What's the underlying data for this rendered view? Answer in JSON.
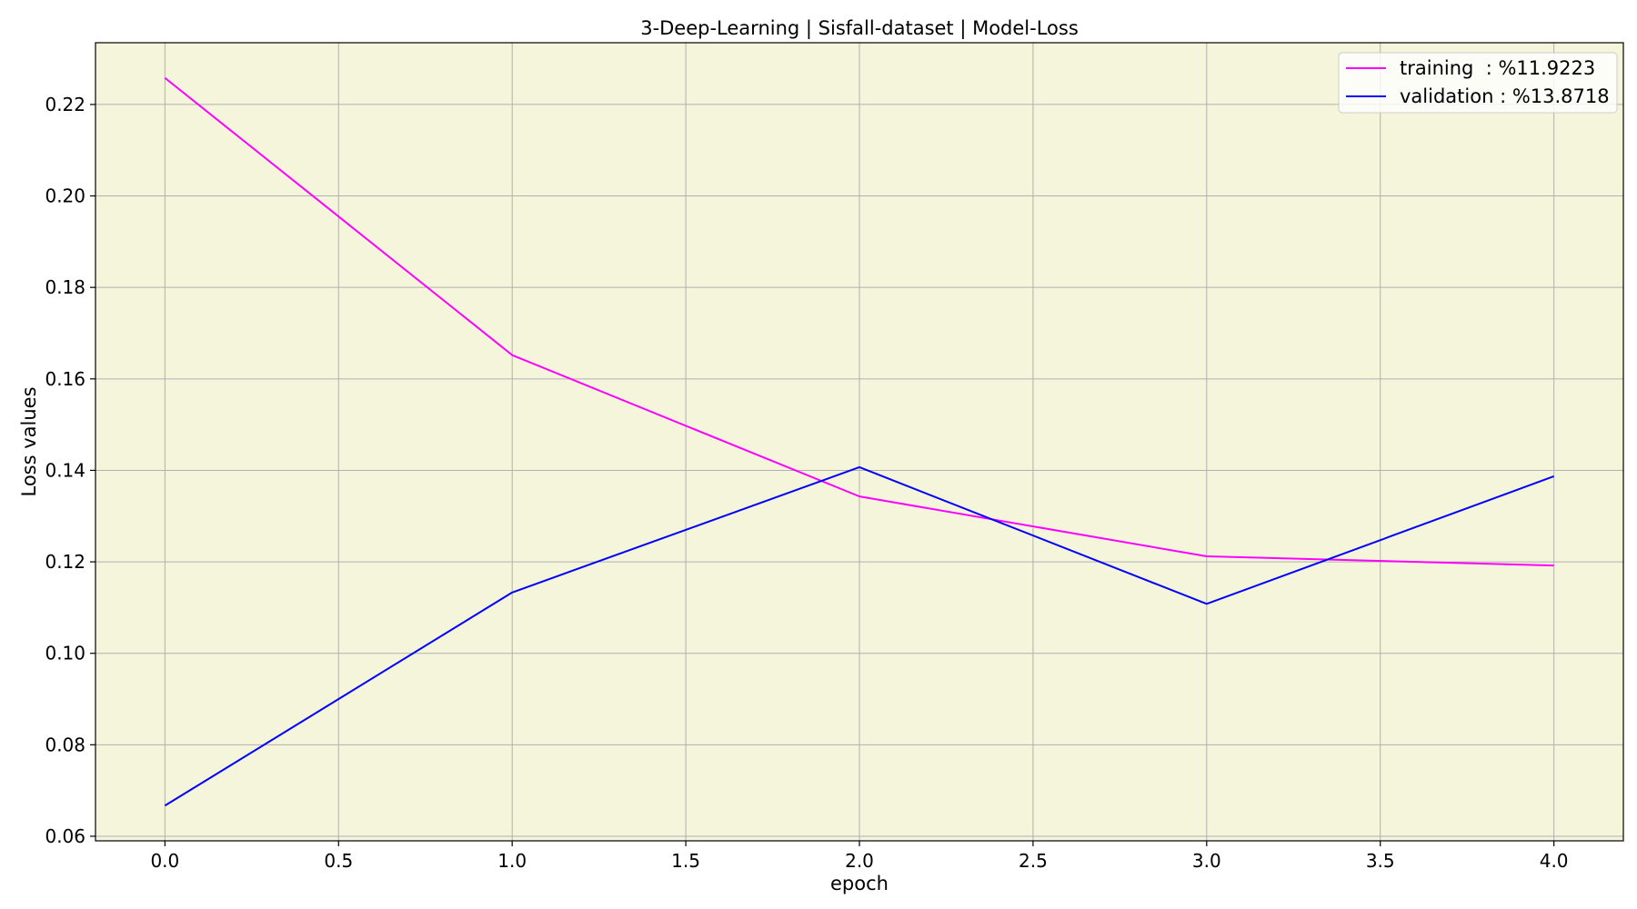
{
  "chart_data": {
    "type": "line",
    "title": "3-Deep-Learning | Sisfall-dataset  | Model-Loss",
    "xlabel": "epoch",
    "ylabel": "Loss values",
    "xlim": [
      -0.2,
      4.2
    ],
    "ylim": [
      0.059,
      0.2335
    ],
    "x_ticks": [
      0.0,
      0.5,
      1.0,
      1.5,
      2.0,
      2.5,
      3.0,
      3.5,
      4.0
    ],
    "x_tick_labels": [
      "0.0",
      "0.5",
      "1.0",
      "1.5",
      "2.0",
      "2.5",
      "3.0",
      "3.5",
      "4.0"
    ],
    "y_ticks": [
      0.06,
      0.08,
      0.1,
      0.12,
      0.14,
      0.16,
      0.18,
      0.2,
      0.22
    ],
    "y_tick_labels": [
      "0.06",
      "0.08",
      "0.10",
      "0.12",
      "0.14",
      "0.16",
      "0.18",
      "0.20",
      "0.22"
    ],
    "grid": true,
    "legend_position": "top-right",
    "background_color": "#f5f5dc",
    "x": [
      0,
      1,
      2,
      3,
      4
    ],
    "series": [
      {
        "name": "training  : %11.9223",
        "color": "#ff00ff",
        "values": [
          0.2258,
          0.1652,
          0.1343,
          0.1212,
          0.1192
        ]
      },
      {
        "name": "validation : %13.8718",
        "color": "#0000ff",
        "values": [
          0.0667,
          0.1133,
          0.1407,
          0.1108,
          0.1387
        ]
      }
    ]
  }
}
